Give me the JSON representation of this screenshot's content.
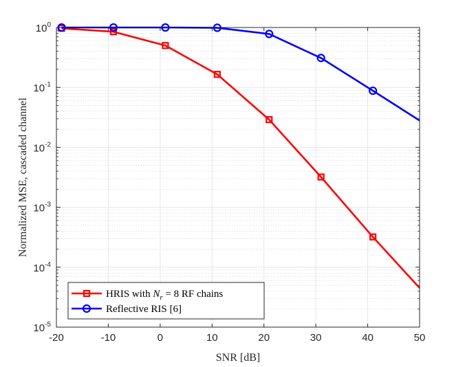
{
  "chart_data": {
    "type": "line",
    "xlabel": "SNR [dB]",
    "ylabel": "Normalized MSE, cascaded channel",
    "xlim": [
      -20,
      50
    ],
    "ylim": [
      1e-05,
      1
    ],
    "yscale": "log",
    "grid": true,
    "minor_grid": true,
    "legend_position": "bottom-left",
    "x_ticks": [
      "-20",
      "-10",
      "0",
      "10",
      "20",
      "30",
      "40",
      "50"
    ],
    "y_ticks": [
      {
        "base": "10",
        "exp": "-5"
      },
      {
        "base": "10",
        "exp": "-4"
      },
      {
        "base": "10",
        "exp": "-3"
      },
      {
        "base": "10",
        "exp": "-2"
      },
      {
        "base": "10",
        "exp": "-1"
      },
      {
        "base": "10",
        "exp": "0"
      }
    ],
    "series": [
      {
        "name": "HRIS with N_r = 8 RF chains",
        "legend_parts": {
          "prefix": "HRIS with ",
          "var": "N",
          "sub": "r",
          "suffix": " = 8 RF chains"
        },
        "color": "#ff0000",
        "marker": "square",
        "x": [
          -19,
          -9,
          1,
          11,
          21,
          31,
          41,
          50
        ],
        "y": [
          0.97,
          0.85,
          0.5,
          0.165,
          0.029,
          0.0032,
          0.00032,
          4.5e-05
        ],
        "marker_x": [
          -19,
          -9,
          1,
          11,
          21,
          31,
          41
        ]
      },
      {
        "name": "Reflective RIS [6]",
        "color": "#0000ff",
        "marker": "circle",
        "x": [
          -19,
          -9,
          1,
          11,
          21,
          31,
          41,
          50
        ],
        "y": [
          1.0,
          1.0,
          1.0,
          0.99,
          0.78,
          0.31,
          0.088,
          0.028
        ],
        "marker_x": [
          -19,
          -9,
          1,
          11,
          21,
          31,
          41
        ]
      }
    ]
  }
}
